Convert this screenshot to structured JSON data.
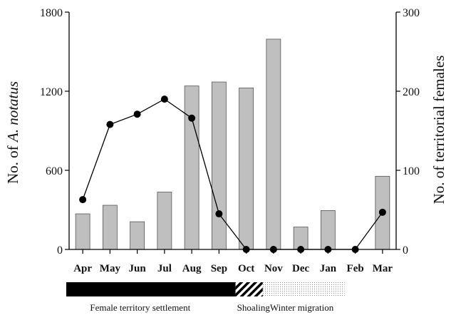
{
  "chart_data": {
    "type": "bar",
    "categories": [
      "Apr",
      "May",
      "Jun",
      "Jul",
      "Aug",
      "Sep",
      "Oct",
      "Nov",
      "Dec",
      "Jan",
      "Feb",
      "Mar"
    ],
    "series": [
      {
        "kind": "bar",
        "axis": "left",
        "values": [
          270,
          335,
          210,
          435,
          1240,
          1270,
          1225,
          1595,
          170,
          295,
          0,
          555
        ]
      },
      {
        "kind": "line",
        "axis": "right",
        "values": [
          63,
          158,
          171,
          190,
          166,
          45,
          0,
          0,
          0,
          0,
          0,
          47
        ]
      }
    ],
    "ylabel": "No. of A. notatus",
    "ylabel_parts": [
      "No. of ",
      "A. notatus"
    ],
    "y2label": "No. of territorial females",
    "ylim": [
      0,
      1800
    ],
    "yticks": [
      "0",
      "600",
      "1200",
      "1800"
    ],
    "y2lim": [
      0,
      300
    ],
    "y2ticks": [
      "0",
      "100",
      "200",
      "300"
    ],
    "grid": false,
    "colors": {
      "bar": "#bfbfbf",
      "line": "#000000"
    },
    "phases": [
      {
        "label": "Female territory settlement",
        "pattern": "solid",
        "start": "Apr",
        "end": "Oct"
      },
      {
        "label": "Shoaling",
        "pattern": "diagonal-stripes",
        "start": "Oct",
        "end": "Nov"
      },
      {
        "label": "Winter migration",
        "pattern": "dotted",
        "start": "Nov",
        "end": "Feb"
      }
    ]
  }
}
